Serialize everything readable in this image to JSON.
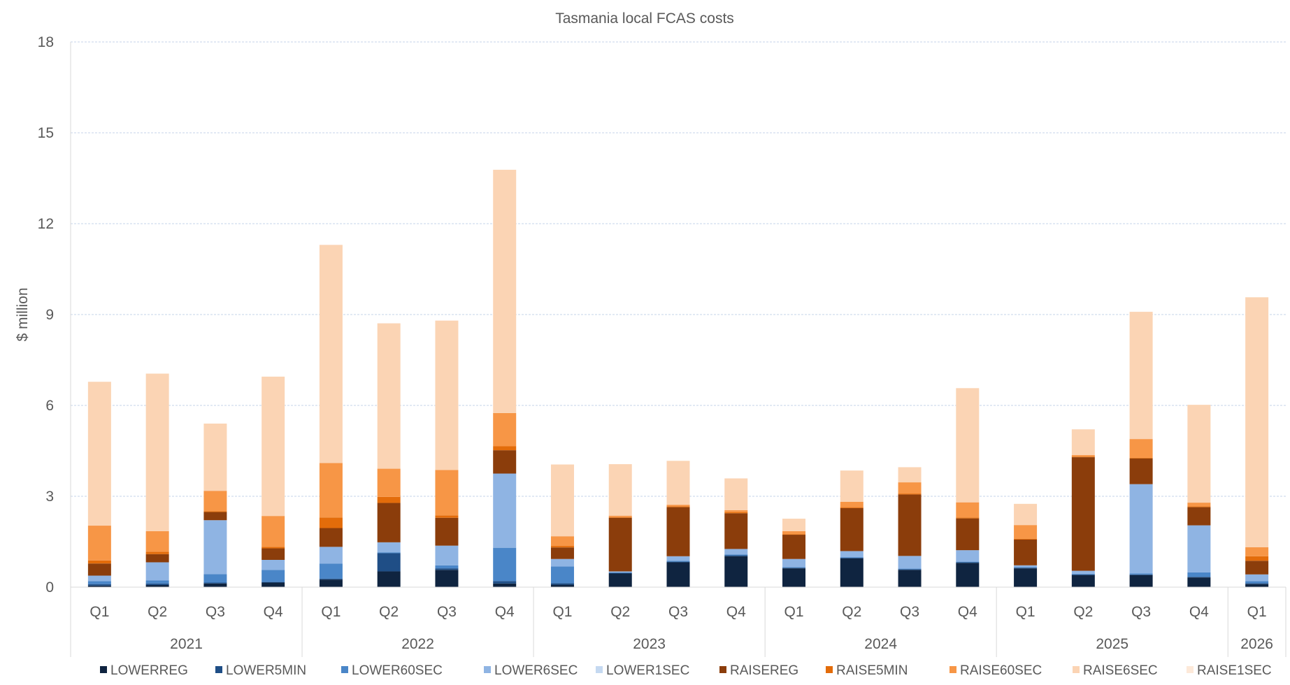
{
  "chart_data": {
    "type": "bar",
    "stacked": true,
    "title": "Tasmania local FCAS costs",
    "xlabel": "",
    "ylabel": "$ million",
    "ylim": [
      0,
      18
    ],
    "yticks": [
      0,
      3,
      6,
      9,
      12,
      15,
      18
    ],
    "grid": true,
    "legend_position": "bottom",
    "categories": [
      "Q1",
      "Q2",
      "Q3",
      "Q4",
      "Q1",
      "Q2",
      "Q3",
      "Q4",
      "Q1",
      "Q2",
      "Q3",
      "Q4",
      "Q1",
      "Q2",
      "Q3",
      "Q4",
      "Q1",
      "Q2",
      "Q3",
      "Q4",
      "Q1"
    ],
    "groups": [
      {
        "label": "2021",
        "count": 4
      },
      {
        "label": "2022",
        "count": 4
      },
      {
        "label": "2023",
        "count": 4
      },
      {
        "label": "2024",
        "count": 4
      },
      {
        "label": "2025",
        "count": 4
      },
      {
        "label": "2026",
        "count": 1
      }
    ],
    "series": [
      {
        "name": "LOWERREG",
        "color": "#0f2440",
        "values": [
          0.05,
          0.07,
          0.12,
          0.15,
          0.25,
          0.52,
          0.57,
          0.12,
          0.08,
          0.45,
          0.82,
          1.02,
          0.62,
          0.95,
          0.57,
          0.8,
          0.62,
          0.4,
          0.4,
          0.32,
          0.1
        ]
      },
      {
        "name": "LOWER5MIN",
        "color": "#1f4e86",
        "values": [
          0.05,
          0.05,
          0.03,
          0.02,
          0.03,
          0.6,
          0.05,
          0.08,
          0.05,
          0.02,
          0.02,
          0.03,
          0.02,
          0.02,
          0.02,
          0.02,
          0.02,
          0.02,
          0.02,
          0.02,
          0.03
        ]
      },
      {
        "name": "LOWER60SEC",
        "color": "#4a86c8",
        "values": [
          0.1,
          0.1,
          0.28,
          0.4,
          0.5,
          0.03,
          0.1,
          1.1,
          0.55,
          0.02,
          0.03,
          0.03,
          0.02,
          0.02,
          0.02,
          0.02,
          0.02,
          0.02,
          0.03,
          0.15,
          0.07
        ]
      },
      {
        "name": "LOWER6SEC",
        "color": "#8fb4e3",
        "values": [
          0.18,
          0.6,
          1.78,
          0.33,
          0.55,
          0.33,
          0.65,
          2.45,
          0.25,
          0.03,
          0.15,
          0.18,
          0.27,
          0.2,
          0.42,
          0.38,
          0.06,
          0.1,
          2.95,
          1.55,
          0.22
        ]
      },
      {
        "name": "LOWER1SEC",
        "color": "#c5d9f1",
        "values": [
          0,
          0,
          0,
          0,
          0,
          0,
          0,
          0,
          0,
          0,
          0,
          0,
          0,
          0,
          0,
          0,
          0,
          0,
          0,
          0,
          0
        ]
      },
      {
        "name": "RAISEREG",
        "color": "#8b3d0b",
        "values": [
          0.4,
          0.27,
          0.27,
          0.38,
          0.62,
          1.3,
          0.92,
          0.77,
          0.38,
          1.77,
          1.62,
          1.18,
          0.8,
          1.42,
          2.03,
          1.05,
          0.85,
          3.75,
          0.85,
          0.6,
          0.45
        ]
      },
      {
        "name": "RAISE5MIN",
        "color": "#e36c0a",
        "values": [
          0.1,
          0.08,
          0.03,
          0.05,
          0.35,
          0.2,
          0.08,
          0.13,
          0.05,
          0.02,
          0.03,
          0.03,
          0.02,
          0.03,
          0.03,
          0.03,
          0.03,
          0.02,
          0.02,
          0.03,
          0.15
        ]
      },
      {
        "name": "RAISE60SEC",
        "color": "#f79646",
        "values": [
          1.15,
          0.68,
          0.67,
          1.02,
          1.8,
          0.93,
          1.5,
          1.1,
          0.32,
          0.05,
          0.05,
          0.07,
          0.1,
          0.18,
          0.37,
          0.5,
          0.45,
          0.05,
          0.62,
          0.12,
          0.3
        ]
      },
      {
        "name": "RAISE6SEC",
        "color": "#fbd4b4",
        "values": [
          4.75,
          5.2,
          2.22,
          4.6,
          7.2,
          4.8,
          4.93,
          8.03,
          2.37,
          1.7,
          1.45,
          1.05,
          0.41,
          1.03,
          0.5,
          3.77,
          0.7,
          0.85,
          4.2,
          3.23,
          8.25
        ]
      },
      {
        "name": "RAISE1SEC",
        "color": "#fde9d9",
        "values": [
          0,
          0,
          0,
          0,
          0,
          0,
          0,
          0,
          0,
          0,
          0,
          0,
          0,
          0,
          0,
          0,
          0,
          0,
          0,
          0,
          0
        ]
      }
    ]
  }
}
